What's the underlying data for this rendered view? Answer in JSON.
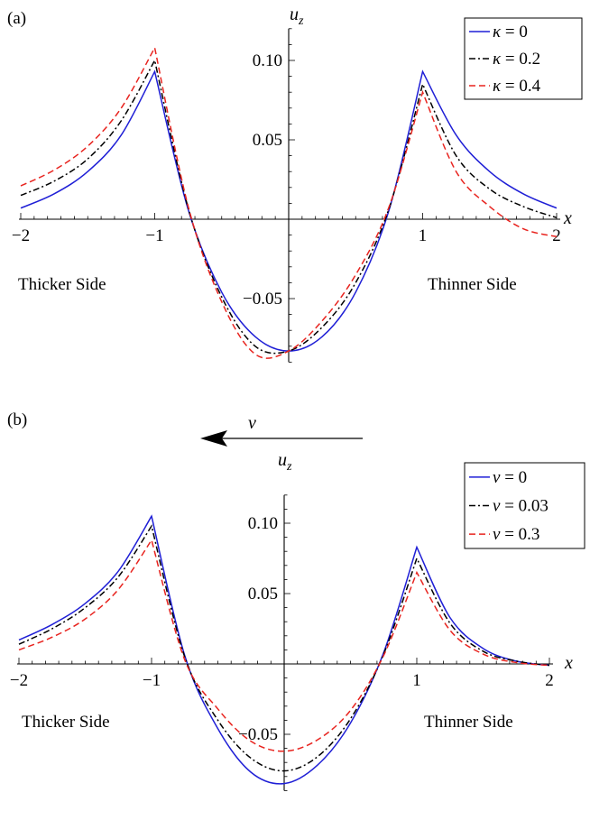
{
  "chart_data": [
    {
      "type": "line",
      "panel_label": "(a)",
      "xlabel": "x",
      "ylabel": "u_z",
      "xlim": [
        -2,
        2
      ],
      "ylim": [
        -0.09,
        0.12
      ],
      "x_ticks": [
        -2,
        -1,
        1,
        2
      ],
      "x_tick_labels": [
        "−2",
        "−1",
        "1",
        "2"
      ],
      "y_ticks": [
        0.1,
        0.05,
        -0.05
      ],
      "y_tick_labels": [
        "0.10",
        "0.05",
        "−0.05"
      ],
      "grid": false,
      "legend_position": "top-right",
      "annotations": [
        "Thicker Side",
        "Thinner Side"
      ],
      "series": [
        {
          "name": "κ = 0",
          "color": "#1f1fd6",
          "dash": "solid",
          "x": [
            -2,
            -1.75,
            -1.5,
            -1.25,
            -1.0,
            -0.75,
            -0.5,
            -0.25,
            0.0,
            0.25,
            0.5,
            0.75,
            1.0,
            1.25,
            1.5,
            1.75,
            2.0
          ],
          "y": [
            0.007,
            0.016,
            0.03,
            0.053,
            0.093,
            0.006,
            -0.046,
            -0.074,
            -0.083,
            -0.074,
            -0.046,
            0.006,
            0.093,
            0.053,
            0.03,
            0.016,
            0.007
          ]
        },
        {
          "name": "κ = 0.2",
          "color": "#000000",
          "dash": "dashdot",
          "x": [
            -2,
            -1.75,
            -1.5,
            -1.25,
            -1.0,
            -0.75,
            -0.5,
            -0.25,
            0.0,
            0.25,
            0.5,
            0.75,
            1.0,
            1.25,
            1.5,
            1.75,
            2.0
          ],
          "y": [
            0.015,
            0.024,
            0.038,
            0.062,
            0.1,
            0.007,
            -0.049,
            -0.08,
            -0.083,
            -0.068,
            -0.04,
            0.007,
            0.085,
            0.04,
            0.019,
            0.008,
            0.001
          ]
        },
        {
          "name": "κ = 0.4",
          "color": "#e8241f",
          "dash": "dashed",
          "x": [
            -2,
            -1.75,
            -1.5,
            -1.25,
            -1.0,
            -0.75,
            -0.5,
            -0.25,
            0.0,
            0.25,
            0.5,
            0.75,
            1.0,
            1.25,
            1.5,
            1.75,
            2.0
          ],
          "y": [
            0.021,
            0.031,
            0.046,
            0.07,
            0.108,
            0.008,
            -0.052,
            -0.085,
            -0.083,
            -0.064,
            -0.035,
            0.008,
            0.08,
            0.03,
            0.008,
            -0.006,
            -0.011
          ]
        }
      ]
    },
    {
      "type": "line",
      "panel_label": "(b)",
      "xlabel": "x",
      "ylabel": "u_z",
      "direction_label": "v",
      "xlim": [
        -2,
        2
      ],
      "ylim": [
        -0.09,
        0.12
      ],
      "x_ticks": [
        -2,
        -1,
        1,
        2
      ],
      "x_tick_labels": [
        "−2",
        "−1",
        "1",
        "2"
      ],
      "y_ticks": [
        0.1,
        0.05,
        -0.05
      ],
      "y_tick_labels": [
        "0.10",
        "0.05",
        "−0.05"
      ],
      "grid": false,
      "legend_position": "top-right",
      "annotations": [
        "Thicker Side",
        "Thinner Side"
      ],
      "series": [
        {
          "name": "v = 0",
          "color": "#1f1fd6",
          "dash": "solid",
          "x": [
            -2,
            -1.75,
            -1.5,
            -1.25,
            -1.0,
            -0.75,
            -0.5,
            -0.25,
            0.0,
            0.25,
            0.5,
            0.75,
            1.0,
            1.25,
            1.5,
            1.75,
            2.0
          ],
          "y": [
            0.017,
            0.028,
            0.043,
            0.066,
            0.105,
            0.006,
            -0.046,
            -0.077,
            -0.085,
            -0.072,
            -0.042,
            0.008,
            0.083,
            0.033,
            0.011,
            0.002,
            -0.001
          ]
        },
        {
          "name": "v = 0.03",
          "color": "#000000",
          "dash": "dashdot",
          "x": [
            -2,
            -1.75,
            -1.5,
            -1.25,
            -1.0,
            -0.75,
            -0.5,
            -0.25,
            0.0,
            0.25,
            0.5,
            0.75,
            1.0,
            1.25,
            1.5,
            1.75,
            2.0
          ],
          "y": [
            0.014,
            0.025,
            0.04,
            0.062,
            0.098,
            0.005,
            -0.04,
            -0.067,
            -0.076,
            -0.066,
            -0.039,
            0.007,
            0.075,
            0.029,
            0.009,
            0.002,
            -0.001
          ]
        },
        {
          "name": "v = 0.3",
          "color": "#e8241f",
          "dash": "dashed",
          "x": [
            -2,
            -1.75,
            -1.5,
            -1.25,
            -1.0,
            -0.75,
            -0.5,
            -0.25,
            0.0,
            0.25,
            0.5,
            0.75,
            1.0,
            1.25,
            1.5,
            1.75,
            2.0
          ],
          "y": [
            0.01,
            0.019,
            0.032,
            0.053,
            0.088,
            0.003,
            -0.032,
            -0.055,
            -0.062,
            -0.054,
            -0.033,
            0.006,
            0.065,
            0.024,
            0.007,
            0.001,
            -0.001
          ]
        }
      ]
    }
  ]
}
